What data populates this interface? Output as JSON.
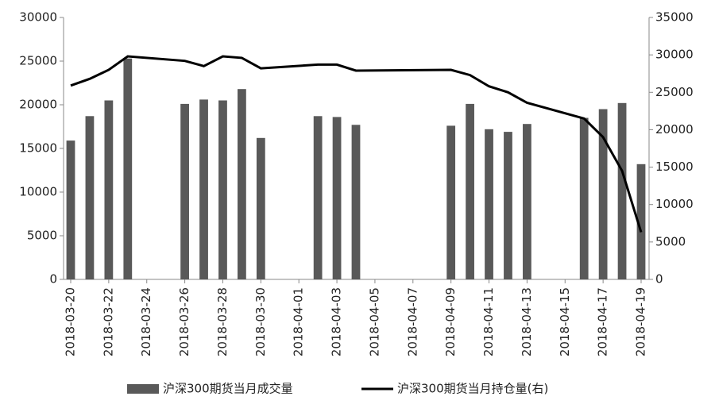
{
  "chart_data": {
    "type": "bar-line",
    "x": [
      "2018-03-20",
      "2018-03-21",
      "2018-03-22",
      "2018-03-23",
      "2018-03-26",
      "2018-03-27",
      "2018-03-28",
      "2018-03-29",
      "2018-03-30",
      "2018-04-02",
      "2018-04-03",
      "2018-04-04",
      "2018-04-09",
      "2018-04-10",
      "2018-04-11",
      "2018-04-12",
      "2018-04-13",
      "2018-04-16",
      "2018-04-17",
      "2018-04-18",
      "2018-04-19"
    ],
    "xticks": [
      "2018-03-20",
      "2018-03-22",
      "2018-03-24",
      "2018-03-26",
      "2018-03-28",
      "2018-03-30",
      "2018-04-01",
      "2018-04-03",
      "2018-04-05",
      "2018-04-07",
      "2018-04-09",
      "2018-04-11",
      "2018-04-13",
      "2018-04-15",
      "2018-04-17",
      "2018-04-19"
    ],
    "xlim": [
      "2018-03-20",
      "2018-04-19"
    ],
    "series": [
      {
        "name": "沪深300期货当月成交量",
        "type": "bar",
        "color": "#595959",
        "values": [
          15900,
          18700,
          20500,
          25300,
          20100,
          20600,
          20500,
          21800,
          16200,
          18700,
          18600,
          17700,
          17600,
          20100,
          17200,
          16900,
          17800,
          18500,
          19500,
          20200,
          13200
        ]
      },
      {
        "name": "沪深300期货当月持仓量(右)",
        "type": "line",
        "axis": "y2",
        "color": "#000000",
        "values": [
          25900,
          26800,
          28000,
          29800,
          29200,
          28500,
          29800,
          29600,
          28200,
          28700,
          28700,
          27900,
          28000,
          27300,
          25800,
          25000,
          23600,
          21500,
          19000,
          14500,
          6300
        ]
      }
    ],
    "ylim": [
      0,
      30000
    ],
    "yticks": [
      0,
      5000,
      10000,
      15000,
      20000,
      25000,
      30000
    ],
    "y2lim": [
      0,
      35000
    ],
    "y2ticks": [
      0,
      5000,
      10000,
      15000,
      20000,
      25000,
      30000,
      35000
    ],
    "legend": "bottom"
  }
}
